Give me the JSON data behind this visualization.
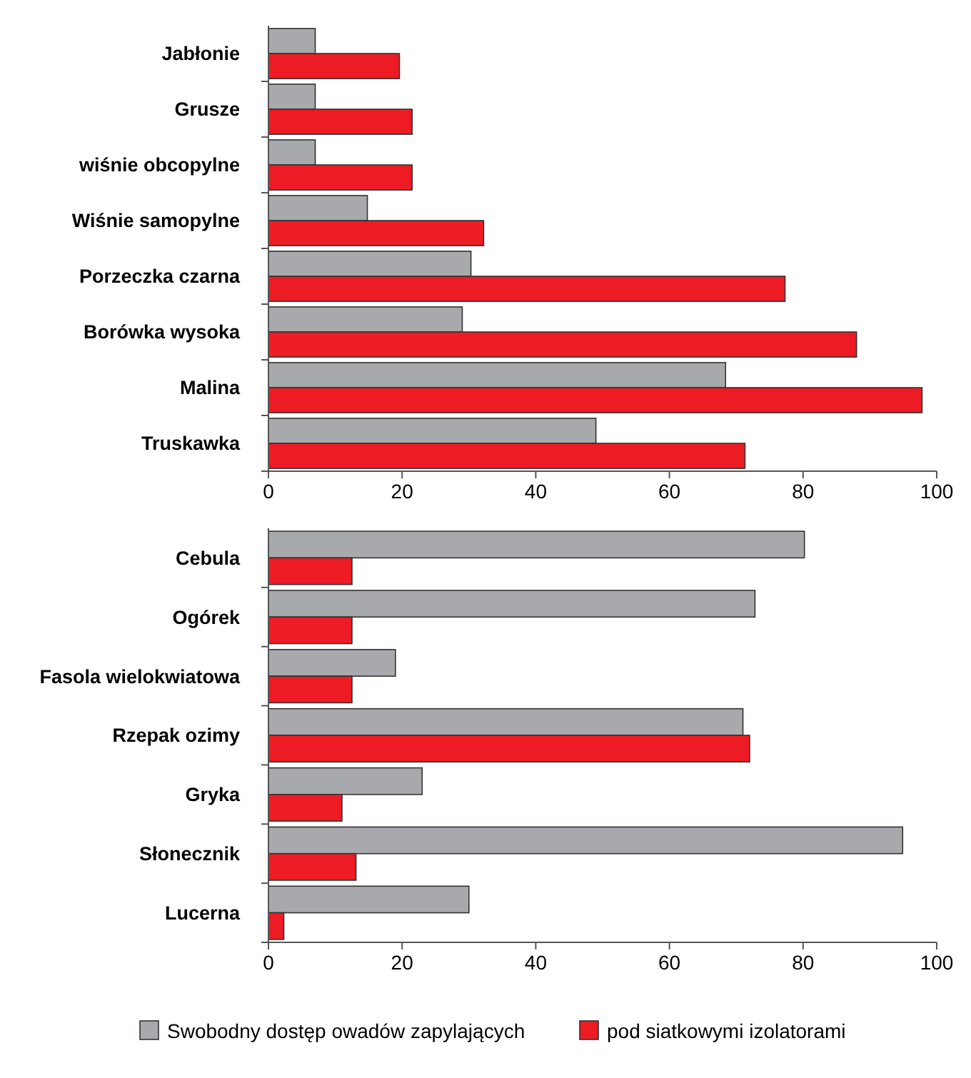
{
  "chart_data": [
    {
      "type": "bar",
      "orientation": "horizontal",
      "categories": [
        "Jabłonie",
        "Grusze",
        "wiśnie obcopylne",
        "Wiśnie samopylne",
        "Porzeczka czarna",
        "Borówka wysoka",
        "Malina",
        "Truskawka"
      ],
      "series": [
        {
          "color": "#a7a9ac",
          "values": [
            7,
            7,
            7,
            14.8,
            30.3,
            29,
            68.4,
            49
          ]
        },
        {
          "color": "#ed1c24",
          "values": [
            19.6,
            21.5,
            21.5,
            32.2,
            77.3,
            88,
            97.8,
            71.3
          ]
        }
      ],
      "xlim": [
        0,
        100
      ],
      "xticks": [
        0,
        20,
        40,
        60,
        80,
        100
      ],
      "grid": false,
      "legend": false
    },
    {
      "type": "bar",
      "orientation": "horizontal",
      "categories": [
        "Cebula",
        "Ogórek",
        "Fasola wielokwiatowa",
        "Rzepak ozimy",
        "Gryka",
        "Słonecznik",
        "Lucerna"
      ],
      "series": [
        {
          "name": "Swobodny dostęp owadów zapylających",
          "color": "#a7a9ac",
          "values": [
            80.2,
            72.8,
            19,
            71,
            23,
            94.9,
            30
          ]
        },
        {
          "name": "pod siatkowymi izolatorami",
          "color": "#ed1c24",
          "values": [
            12.5,
            12.5,
            12.5,
            72,
            11,
            13.1,
            2.3
          ]
        }
      ],
      "xlim": [
        0,
        100
      ],
      "xticks": [
        0,
        20,
        40,
        60,
        80,
        100
      ],
      "grid": false,
      "legend": "bottom"
    }
  ]
}
